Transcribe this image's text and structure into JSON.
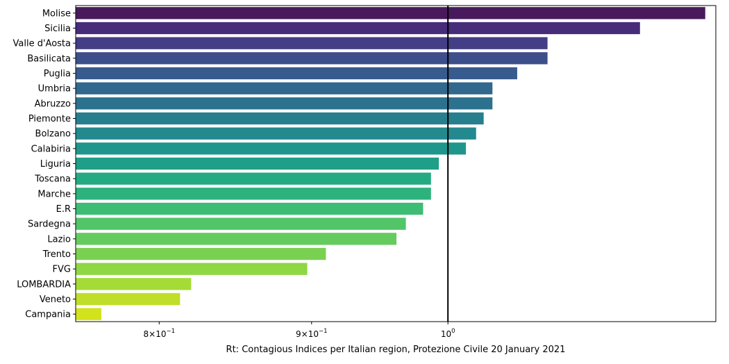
{
  "chart_data": {
    "type": "bar",
    "orientation": "horizontal",
    "xscale": "log",
    "xlabel": "Rt: Contagious Indices per Italian region, Protezione Civile 20 January 2021",
    "xlim": [
      0.75,
      1.23
    ],
    "reference_line": 1.0,
    "xticks": [
      {
        "value": 0.8,
        "mantissa": "8",
        "exponent": "−1"
      },
      {
        "value": 0.9,
        "mantissa": "9",
        "exponent": "−1"
      },
      {
        "value": 1.0,
        "mantissa": "",
        "exponent": "0"
      }
    ],
    "categories": [
      "Molise",
      "Sicilia",
      "Valle d'Aosta",
      "Basilicata",
      "Puglia",
      "Umbria",
      "Abruzzo",
      "Piemonte",
      "Bolzano",
      "Calabiria",
      "Liguria",
      "Toscana",
      "Marche",
      "E.R",
      "Sardegna",
      "Lazio",
      "Trento",
      "FVG",
      "LOMBARDIA",
      "Veneto",
      "Campania"
    ],
    "values": [
      1.22,
      1.16,
      1.08,
      1.08,
      1.055,
      1.035,
      1.035,
      1.028,
      1.022,
      1.014,
      0.993,
      0.987,
      0.987,
      0.981,
      0.968,
      0.961,
      0.91,
      0.897,
      0.82,
      0.813,
      0.765
    ],
    "colors": [
      "#481a5b",
      "#472c7a",
      "#433e85",
      "#3d4e8a",
      "#375b8d",
      "#31688e",
      "#2c728e",
      "#277f8e",
      "#23898e",
      "#1f968b",
      "#1f9f88",
      "#24aa83",
      "#2db27d",
      "#3dbc74",
      "#52c569",
      "#65cb5e",
      "#7ad151",
      "#8fd744",
      "#a5db36",
      "#bede2a",
      "#d2e21b"
    ],
    "grid": false,
    "legend": "none"
  }
}
